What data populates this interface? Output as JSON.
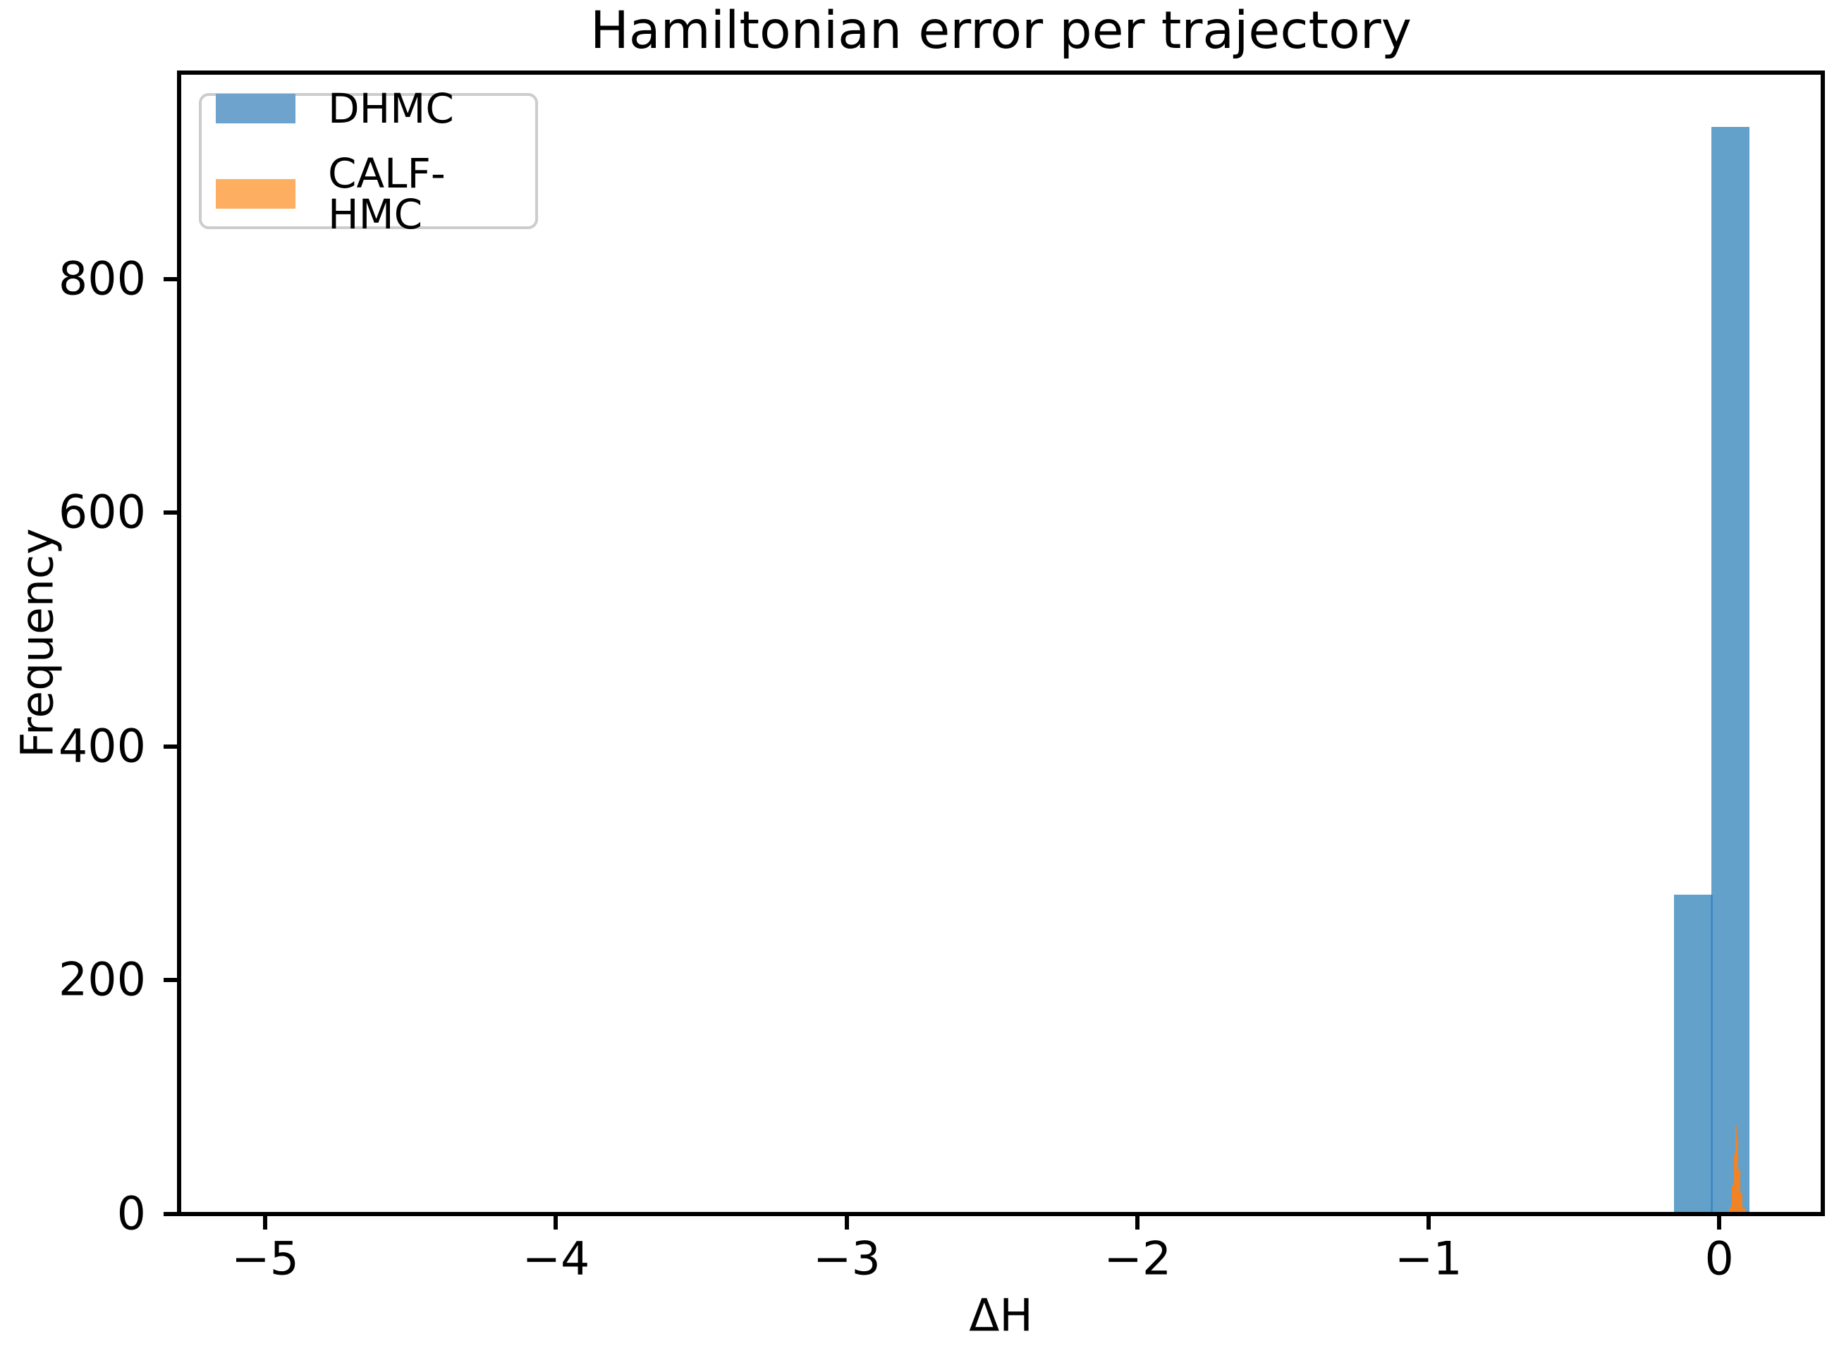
{
  "figure": {
    "background": "#ffffff"
  },
  "legend": {
    "position": "upper left",
    "items": [
      {
        "label": "DHMC",
        "swatch": "#6da3cc"
      },
      {
        "label": "CALF-HMC",
        "swatch": "#fdae61"
      }
    ]
  },
  "chart_data": {
    "type": "bar",
    "subtype": "histogram",
    "title": "Hamiltonian error per trajectory",
    "xlabel": "ΔH",
    "ylabel": "Frequency",
    "xlim": [
      -5.296,
      0.356
    ],
    "ylim": [
      0,
      976.5
    ],
    "grid": false,
    "legend_position": "upper left",
    "xticks": {
      "values": [
        -5,
        -4,
        -3,
        -2,
        -1,
        0
      ],
      "labels": [
        "−5",
        "−4",
        "−3",
        "−2",
        "−1",
        "0"
      ]
    },
    "yticks": {
      "values": [
        0,
        200,
        400,
        600,
        800
      ],
      "labels": [
        "0",
        "200",
        "400",
        "600",
        "800"
      ]
    },
    "series": [
      {
        "name": "DHMC",
        "fill": "#63a0ca",
        "edge_seam": "#3e8ac2",
        "bins": [
          {
            "x0": -0.155,
            "x1": -0.027,
            "count": 273
          },
          {
            "x0": -0.027,
            "x1": 0.104,
            "count": 930
          }
        ]
      },
      {
        "name": "CALF-HMC",
        "fill": "#ef8326",
        "bins": [
          {
            "x0": 0.034,
            "x1": 0.0437,
            "count": 6
          },
          {
            "x0": 0.0437,
            "x1": 0.0509,
            "count": 25
          },
          {
            "x0": 0.0509,
            "x1": 0.0558,
            "count": 52
          },
          {
            "x0": 0.0558,
            "x1": 0.0606,
            "count": 76
          },
          {
            "x0": 0.0606,
            "x1": 0.0655,
            "count": 65
          },
          {
            "x0": 0.0655,
            "x1": 0.0727,
            "count": 38
          },
          {
            "x0": 0.0727,
            "x1": 0.08,
            "count": 18
          },
          {
            "x0": 0.08,
            "x1": 0.0921,
            "count": 5
          }
        ]
      }
    ]
  }
}
